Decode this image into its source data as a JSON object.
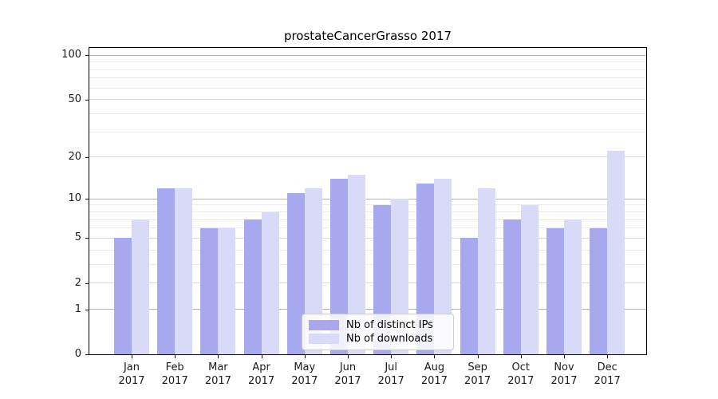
{
  "chart_data": {
    "type": "bar",
    "title": "prostateCancerGrasso 2017",
    "categories": [
      "Jan",
      "Feb",
      "Mar",
      "Apr",
      "May",
      "Jun",
      "Jul",
      "Aug",
      "Sep",
      "Oct",
      "Nov",
      "Dec"
    ],
    "x_tick_year": "2017",
    "series": [
      {
        "name": "Nb of distinct IPs",
        "color": "#a8a8ef",
        "values": [
          5,
          12,
          6,
          7,
          11,
          14,
          9,
          13,
          5,
          7,
          6,
          6
        ]
      },
      {
        "name": "Nb of downloads",
        "color": "#d9d9f8",
        "values": [
          7,
          12,
          6,
          8,
          12,
          15,
          10,
          14,
          12,
          9,
          7,
          22
        ]
      }
    ],
    "scale": "log1p",
    "ylim": [
      0,
      112
    ],
    "y_ticks": [
      100,
      50,
      20,
      10,
      5,
      2,
      1,
      0
    ],
    "y_grid_major": [
      1,
      10,
      100
    ],
    "y_grid_mid": [
      2,
      5,
      20,
      50
    ],
    "y_grid_minor": [
      3,
      4,
      6,
      7,
      8,
      9,
      30,
      40,
      60,
      70,
      80,
      90
    ],
    "grid": true,
    "legend_position": "lower center"
  },
  "colors": {
    "grid_major": "#b4b4b4",
    "grid_mid": "#dadada",
    "grid_minor": "#ececec",
    "spine": "#000000",
    "text": "#1a1a1a"
  }
}
